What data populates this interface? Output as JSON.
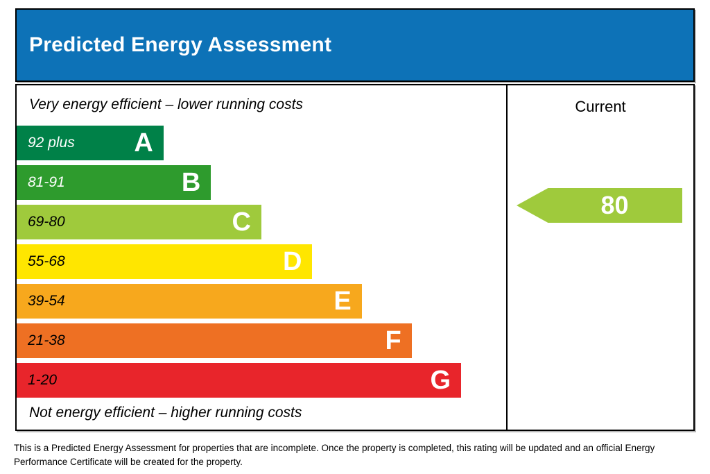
{
  "header": {
    "title": "Predicted Energy Assessment",
    "bg_color": "#0d72b7"
  },
  "chart": {
    "top_note": "Very energy efficient – lower running costs",
    "bottom_note": "Not energy efficient – higher running costs",
    "current_label": "Current",
    "current": {
      "value": "80",
      "band": "C",
      "color": "#9fca3c"
    },
    "bands": [
      {
        "grade": "A",
        "range": "92 plus",
        "color": "#008148",
        "text_color": "#ffffff",
        "width_pct": 30
      },
      {
        "grade": "B",
        "range": "81-91",
        "color": "#2e9b2d",
        "text_color": "#ffffff",
        "width_pct": 39.7
      },
      {
        "grade": "C",
        "range": "69-80",
        "color": "#9fca3c",
        "text_color": "#000000",
        "width_pct": 50
      },
      {
        "grade": "D",
        "range": "55-68",
        "color": "#ffe600",
        "text_color": "#000000",
        "width_pct": 60.4
      },
      {
        "grade": "E",
        "range": "39-54",
        "color": "#f7a81d",
        "text_color": "#000000",
        "width_pct": 70.5
      },
      {
        "grade": "F",
        "range": "21-38",
        "color": "#ee7023",
        "text_color": "#000000",
        "width_pct": 80.7
      },
      {
        "grade": "G",
        "range": "1-20",
        "color": "#e8252b",
        "text_color": "#000000",
        "width_pct": 90.8
      }
    ]
  },
  "footer": {
    "text": "This is a Predicted Energy Assessment for properties that are incomplete. Once the property is completed, this rating will be updated and an official Energy Performance Certificate will be created for the property."
  },
  "chart_data": {
    "type": "bar",
    "title": "Predicted Energy Assessment",
    "categories": [
      "A",
      "B",
      "C",
      "D",
      "E",
      "F",
      "G"
    ],
    "band_ranges": [
      "92 plus",
      "81-91",
      "69-80",
      "55-68",
      "39-54",
      "21-38",
      "1-20"
    ],
    "bar_width_pct": [
      30,
      39.7,
      50,
      60.4,
      70.5,
      80.7,
      90.8
    ],
    "colors": [
      "#008148",
      "#2e9b2d",
      "#9fca3c",
      "#ffe600",
      "#f7a81d",
      "#ee7023",
      "#e8252b"
    ],
    "series": [
      {
        "name": "Current",
        "values": [
          80
        ],
        "band": "C",
        "color": "#9fca3c"
      }
    ],
    "annotations": [
      "Very energy efficient – lower running costs",
      "Not energy efficient – higher running costs"
    ],
    "legend_position": "right-column-header",
    "grid": false
  }
}
